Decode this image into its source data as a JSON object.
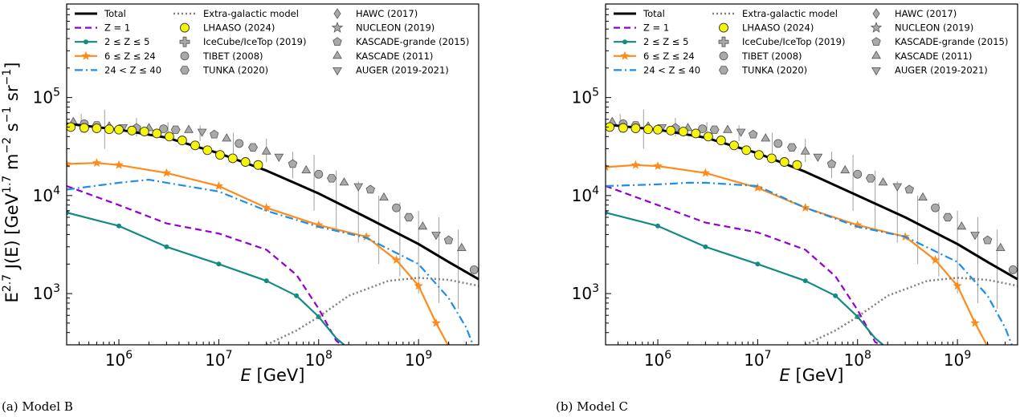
{
  "colors": {
    "total": "#000000",
    "z1": "#9400d3",
    "z2_5": "#138a84",
    "z6_24": "#ff8c1a",
    "z24_40": "#1f8ee6",
    "extragalactic": "#808080",
    "lhaaso": "#f5f50a",
    "other_points": "#a9a9a9"
  },
  "chart_data": [
    {
      "type": "line",
      "caption": "(a) Model B",
      "x_scale": "log",
      "y_scale": "log",
      "xlim": [
        300000,
        4000000000
      ],
      "ylim": [
        300,
        900000
      ],
      "xlabel": "E [GeV]",
      "ylabel": "E^{2.7} J(E) [GeV^{1.7} m^{-2} s^{-1} sr^{-1}]",
      "ylabel_parts": [
        "E",
        "2.7",
        " J(E) [GeV",
        "1.7",
        " m",
        "−2",
        " s",
        "−1",
        " sr",
        "−1",
        "]"
      ],
      "x_ticks": [
        {
          "value": 1000000,
          "base": "10",
          "exp": "6"
        },
        {
          "value": 10000000,
          "base": "10",
          "exp": "7"
        },
        {
          "value": 100000000,
          "base": "10",
          "exp": "8"
        },
        {
          "value": 1000000000,
          "base": "10",
          "exp": "9"
        }
      ],
      "y_ticks": [
        {
          "value": 1000,
          "base": "10",
          "exp": "3"
        },
        {
          "value": 10000,
          "base": "10",
          "exp": "4"
        },
        {
          "value": 100000,
          "base": "10",
          "exp": "5"
        }
      ],
      "legend": [
        [
          "Total",
          "2 ≤ Z ≤ 5",
          "24 < Z ≤ 40",
          "IceCube/IceTop (2019)",
          "TUNKA (2020)",
          "NUCLEON (2019)",
          "KASCADE (2011)"
        ],
        [
          "Z = 1",
          "6 ≤ Z ≤ 24",
          "Extra-galactic model",
          "LHAASO (2024)",
          "TIBET (2008)",
          "HAWC (2017)",
          "KASCADE-grande (2015)",
          "AUGER (2019-2021)"
        ]
      ],
      "legend_labels": [
        "Total",
        "Z = 1",
        "2 ≤ Z ≤ 5",
        "6 ≤ Z ≤ 24",
        "24 < Z ≤ 40",
        "Extra-galactic model",
        "LHAASO (2024)",
        "IceCube/IceTop (2019)",
        "TIBET (2008)",
        "TUNKA (2020)",
        "HAWC (2017)",
        "NUCLEON (2019)",
        "KASCADE-grande (2015)",
        "KASCADE (2011)",
        "AUGER (2019-2021)"
      ],
      "series": [
        {
          "name": "Total",
          "style": "solid",
          "x": [
            300000,
            1000000,
            3000000,
            10000000,
            30000000,
            100000000,
            300000000,
            1000000000,
            2000000000,
            4000000000
          ],
          "y": [
            54000,
            47000,
            39000,
            27000,
            18000,
            10500,
            6000,
            3200,
            2100,
            1400
          ]
        },
        {
          "name": "Z = 1",
          "style": "dashed",
          "x": [
            300000,
            1000000,
            3000000,
            10000000,
            30000000,
            60000000,
            100000000,
            150000000,
            170000000
          ],
          "y": [
            12500,
            8000,
            5200,
            4100,
            2800,
            1550,
            700,
            330,
            300
          ]
        },
        {
          "name": "2 ≤ Z ≤ 5",
          "style": "dots",
          "x": [
            300000,
            1000000,
            3000000,
            10000000,
            30000000,
            60000000,
            100000000,
            150000000,
            180000000
          ],
          "y": [
            6700,
            4900,
            3000,
            2000,
            1350,
            950,
            580,
            350,
            300
          ]
        },
        {
          "name": "6 ≤ Z ≤ 24",
          "style": "stars",
          "x": [
            300000,
            600000,
            1000000,
            3000000,
            10000000,
            30000000,
            100000000,
            300000000,
            600000000,
            1000000000,
            1500000000,
            2000000000
          ],
          "y": [
            21000,
            21500,
            20500,
            17000,
            12500,
            7500,
            5000,
            3800,
            2200,
            1200,
            500,
            290
          ]
        },
        {
          "name": "24 < Z ≤ 40",
          "style": "dashdot",
          "x": [
            300000,
            1000000,
            2000000,
            3000000,
            10000000,
            30000000,
            100000000,
            300000000,
            1000000000,
            2000000000,
            3000000000,
            3500000000
          ],
          "y": [
            11500,
            13500,
            14500,
            13500,
            11000,
            7000,
            4800,
            3700,
            2000,
            900,
            450,
            300
          ]
        },
        {
          "name": "Extra-galactic model",
          "style": "dotted",
          "x": [
            30000000,
            60000000,
            100000000,
            200000000,
            500000000,
            1000000000,
            2000000000,
            4000000000
          ],
          "y": [
            300,
            420,
            580,
            950,
            1350,
            1450,
            1380,
            1200
          ]
        }
      ],
      "lhaaso": {
        "x": [
          330000,
          450000,
          600000,
          800000,
          1000000,
          1350000,
          1800000,
          2400000,
          3200000,
          4300000,
          5800000,
          7700000,
          10300000,
          13800000,
          18500000,
          24800000
        ],
        "y": [
          50000,
          49000,
          48500,
          47500,
          47000,
          46000,
          45000,
          43000,
          40000,
          36500,
          32500,
          29000,
          26000,
          24000,
          22000,
          20500
        ]
      },
      "other_points": {
        "x": [
          350000,
          450000,
          600000,
          800000,
          1100000,
          1500000,
          2000000,
          2800000,
          3700000,
          5000000,
          6800000,
          9000000,
          12000000,
          16000000,
          22000000,
          30000000,
          40000000,
          55000000,
          75000000,
          100000000,
          135000000,
          180000000,
          250000000,
          330000000,
          450000000,
          600000000,
          800000000,
          1100000000,
          1500000000,
          2000000000,
          2700000000,
          3600000000
        ],
        "y": [
          56000,
          54000,
          52000,
          50500,
          50000,
          49000,
          48500,
          48000,
          47000,
          46500,
          45000,
          42000,
          38000,
          34000,
          31000,
          28000,
          25000,
          21000,
          18000,
          16500,
          15000,
          13500,
          12500,
          11500,
          9500,
          7500,
          6000,
          4800,
          4000,
          3500,
          2900,
          1750
        ]
      },
      "err_points": {
        "x": [
          420000,
          720000,
          1500000,
          3100000,
          6500000,
          14000000,
          30000000,
          55000000,
          90000000,
          150000000,
          250000000,
          400000000,
          650000000,
          1000000000,
          1600000000,
          2500000000
        ],
        "lo": [
          44000,
          30000,
          40000,
          39000,
          36000,
          27000,
          22000,
          15000,
          7000,
          4500,
          3300,
          2000,
          1500,
          1000,
          800,
          700
        ],
        "hi": [
          68000,
          75000,
          62000,
          56000,
          52000,
          44000,
          38000,
          28000,
          26000,
          18000,
          14000,
          10000,
          8500,
          7000,
          6000,
          4500
        ]
      }
    },
    {
      "type": "line",
      "caption": "(b) Model C",
      "x_scale": "log",
      "y_scale": "log",
      "xlim": [
        300000,
        4000000000
      ],
      "ylim": [
        300,
        900000
      ],
      "xlabel": "E [GeV]",
      "x_ticks": [
        {
          "value": 1000000,
          "base": "10",
          "exp": "6"
        },
        {
          "value": 10000000,
          "base": "10",
          "exp": "7"
        },
        {
          "value": 100000000,
          "base": "10",
          "exp": "8"
        },
        {
          "value": 1000000000,
          "base": "10",
          "exp": "9"
        }
      ],
      "y_ticks": [
        {
          "value": 1000,
          "base": "10",
          "exp": "3"
        },
        {
          "value": 10000,
          "base": "10",
          "exp": "4"
        },
        {
          "value": 100000,
          "base": "10",
          "exp": "5"
        }
      ],
      "legend": [
        [
          "Total",
          "2 ≤ Z ≤ 5",
          "24 < Z ≤ 40",
          "IceCube/IceTop (2019)",
          "TUNKA (2020)",
          "NUCLEON (2019)",
          "KASCADE (2011)"
        ],
        [
          "Z = 1",
          "6 ≤ Z ≤ 24",
          "Extra-galactic model",
          "LHAASO (2024)",
          "TIBET (2008)",
          "HAWC (2017)",
          "KASCADE-grande (2015)",
          "AUGER (2019-2021)"
        ]
      ],
      "legend_labels": [
        "Total",
        "Z = 1",
        "2 ≤ Z ≤ 5",
        "6 ≤ Z ≤ 24",
        "24 < Z ≤ 40",
        "Extra-galactic model",
        "LHAASO (2024)",
        "IceCube/IceTop (2019)",
        "TIBET (2008)",
        "TUNKA (2020)",
        "HAWC (2017)",
        "NUCLEON (2019)",
        "KASCADE-grande (2015)",
        "KASCADE (2011)",
        "AUGER (2019-2021)"
      ],
      "series": [
        {
          "name": "Total",
          "style": "solid",
          "x": [
            300000,
            1000000,
            3000000,
            10000000,
            30000000,
            100000000,
            300000000,
            1000000000,
            2000000000,
            4000000000
          ],
          "y": [
            53000,
            47000,
            39000,
            27000,
            17500,
            10000,
            6000,
            3200,
            2100,
            1400
          ]
        },
        {
          "name": "Z = 1",
          "style": "dashed",
          "x": [
            300000,
            1000000,
            3000000,
            10000000,
            30000000,
            60000000,
            100000000,
            150000000,
            170000000
          ],
          "y": [
            12500,
            8000,
            5300,
            4200,
            2800,
            1500,
            680,
            320,
            300
          ]
        },
        {
          "name": "2 ≤ Z ≤ 5",
          "style": "dots",
          "x": [
            300000,
            1000000,
            3000000,
            10000000,
            30000000,
            60000000,
            100000000,
            150000000,
            180000000
          ],
          "y": [
            6700,
            4900,
            3000,
            2000,
            1350,
            950,
            580,
            350,
            300
          ]
        },
        {
          "name": "6 ≤ Z ≤ 24",
          "style": "stars",
          "x": [
            300000,
            600000,
            1000000,
            3000000,
            10000000,
            30000000,
            100000000,
            300000000,
            600000000,
            1000000000,
            1500000000,
            2000000000
          ],
          "y": [
            19500,
            20500,
            20000,
            17000,
            12000,
            7500,
            5000,
            3800,
            2200,
            1200,
            500,
            290
          ]
        },
        {
          "name": "24 < Z ≤ 40",
          "style": "dashdot",
          "x": [
            300000,
            1000000,
            2000000,
            3000000,
            10000000,
            30000000,
            100000000,
            300000000,
            1000000000,
            2000000000,
            3000000000,
            3500000000
          ],
          "y": [
            12500,
            13000,
            13500,
            13500,
            12500,
            7500,
            4800,
            3800,
            2100,
            950,
            450,
            300
          ]
        },
        {
          "name": "Extra-galactic model",
          "style": "dotted",
          "x": [
            30000000,
            60000000,
            100000000,
            200000000,
            500000000,
            1000000000,
            2000000000,
            4000000000
          ],
          "y": [
            300,
            420,
            580,
            950,
            1350,
            1450,
            1380,
            1200
          ]
        }
      ],
      "lhaaso": {
        "x": [
          330000,
          450000,
          600000,
          800000,
          1000000,
          1350000,
          1800000,
          2400000,
          3200000,
          4300000,
          5800000,
          7700000,
          10300000,
          13800000,
          18500000,
          24800000
        ],
        "y": [
          50000,
          49000,
          48500,
          47500,
          47000,
          46000,
          45000,
          43000,
          40000,
          36500,
          32500,
          29000,
          26000,
          24000,
          22000,
          20500
        ]
      },
      "other_points": {
        "x": [
          350000,
          450000,
          600000,
          800000,
          1100000,
          1500000,
          2000000,
          2800000,
          3700000,
          5000000,
          6800000,
          9000000,
          12000000,
          16000000,
          22000000,
          30000000,
          40000000,
          55000000,
          75000000,
          100000000,
          135000000,
          180000000,
          250000000,
          330000000,
          450000000,
          600000000,
          800000000,
          1100000000,
          1500000000,
          2000000000,
          2700000000,
          3600000000
        ],
        "y": [
          56000,
          54000,
          52000,
          50500,
          50000,
          49000,
          48500,
          48000,
          47000,
          46500,
          45000,
          42000,
          38000,
          34000,
          31000,
          28000,
          25000,
          21000,
          18000,
          16500,
          15000,
          13500,
          12500,
          11500,
          9500,
          7500,
          6000,
          4800,
          4000,
          3500,
          2900,
          1750
        ]
      },
      "err_points": {
        "x": [
          420000,
          720000,
          1500000,
          3100000,
          6500000,
          14000000,
          30000000,
          55000000,
          90000000,
          150000000,
          250000000,
          400000000,
          650000000,
          1000000000,
          1600000000,
          2500000000
        ],
        "lo": [
          44000,
          30000,
          40000,
          39000,
          36000,
          27000,
          22000,
          15000,
          7000,
          4500,
          3300,
          2000,
          1500,
          1000,
          800,
          700
        ],
        "hi": [
          68000,
          75000,
          62000,
          56000,
          52000,
          44000,
          38000,
          28000,
          26000,
          18000,
          14000,
          10000,
          8500,
          7000,
          6000,
          4500
        ]
      }
    }
  ]
}
